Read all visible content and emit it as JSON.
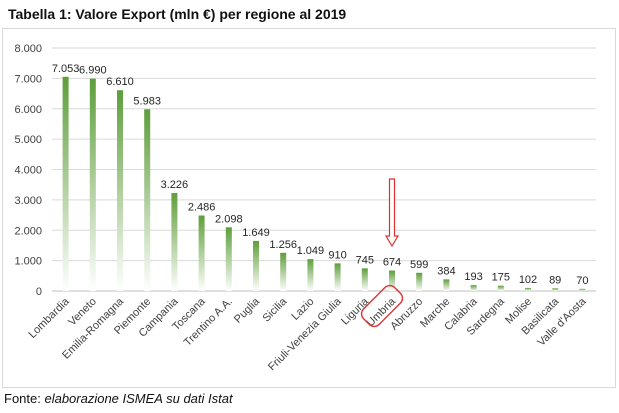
{
  "page": {
    "title": "Tabella 1: Valore Export (mln €) per regione al 2019",
    "source_prefix": "Fonte: ",
    "source_italic": "elaborazione ISMEA su dati Istat"
  },
  "chart_data": {
    "type": "bar",
    "categories": [
      "Lombardia",
      "Veneto",
      "Emilia-Romagna",
      "Piemonte",
      "Campania",
      "Toscana",
      "Trentino A.A.",
      "Puglia",
      "Sicilia",
      "Lazio",
      "Friuli-Venezia Giulia",
      "Liguria",
      "Umbria",
      "Abruzzo",
      "Marche",
      "Calabria",
      "Sardegna",
      "Molise",
      "Basilicata",
      "Valle d'Aosta"
    ],
    "values": [
      7053,
      6990,
      6610,
      5983,
      3226,
      2486,
      2098,
      1649,
      1256,
      1049,
      910,
      745,
      674,
      599,
      384,
      193,
      175,
      102,
      89,
      70
    ],
    "data_labels": [
      "7.053",
      "6.990",
      "6.610",
      "5.983",
      "3.226",
      "2.486",
      "2.098",
      "1.649",
      "1.256",
      "1.049",
      "910",
      "745",
      "674",
      "599",
      "384",
      "193",
      "175",
      "102",
      "89",
      "70"
    ],
    "ylim": [
      0,
      8000
    ],
    "yticks": [
      0,
      1000,
      2000,
      3000,
      4000,
      5000,
      6000,
      7000,
      8000
    ],
    "ytick_labels": [
      "0",
      "1.000",
      "2.000",
      "3.000",
      "4.000",
      "5.000",
      "6.000",
      "7.000",
      "8.000"
    ],
    "grid": true,
    "bar_color": "#70ad47",
    "highlight": {
      "category": "Umbria",
      "color": "#e03030"
    }
  }
}
